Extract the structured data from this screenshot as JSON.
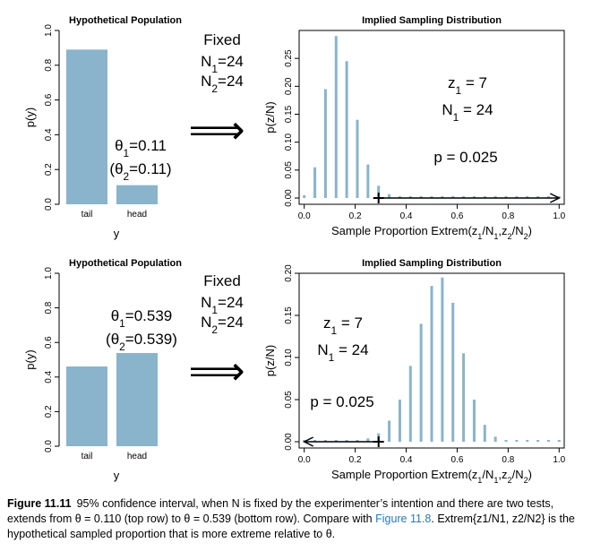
{
  "colors": {
    "bar": "#89b4cb",
    "axis": "#000000",
    "link": "#2a7ab8"
  },
  "chart_data": [
    {
      "type": "bar",
      "title": "Hypothetical Population",
      "xlabel": "y",
      "ylabel": "p(y)",
      "categories": [
        "tail",
        "head"
      ],
      "values": [
        0.89,
        0.11
      ],
      "ylim": [
        0,
        1
      ],
      "yticks": [
        "0.0",
        "0.2",
        "0.4",
        "0.6",
        "0.8",
        "1.0"
      ],
      "theta_label": "θ1=0.11",
      "theta2_label": "(θ2=0.11)"
    },
    {
      "type": "bar",
      "title": "Implied Sampling Distribution",
      "xlabel": "Sample Proportion Extrem(z1/N1,z2/N2)",
      "ylabel": "p(z/N)",
      "ylim": [
        0,
        0.3
      ],
      "xlim": [
        -0.02,
        1.02
      ],
      "xticks": [
        "0.0",
        "0.2",
        "0.4",
        "0.6",
        "0.8",
        "1.0"
      ],
      "yticks": [
        "0.00",
        "0.05",
        "0.10",
        "0.15",
        "0.20",
        "0.25"
      ],
      "x": [
        0.0,
        0.0417,
        0.0833,
        0.125,
        0.1667,
        0.2083,
        0.25,
        0.2917,
        0.3333,
        0.375,
        0.4167,
        0.4583,
        0.5,
        0.5417,
        0.5833,
        0.625,
        0.6667,
        0.7083,
        0.75,
        0.7917,
        0.8333,
        0.875,
        0.9167,
        0.9583,
        1.0
      ],
      "values": [
        0.005,
        0.055,
        0.195,
        0.29,
        0.245,
        0.14,
        0.06,
        0.022,
        0.007,
        0.002,
        0.001,
        0.0005,
        0.0003,
        0.0002,
        0.0002,
        0.0002,
        0.0002,
        0.0002,
        0.0002,
        0.0002,
        0.0002,
        0.0002,
        0.0002,
        0.0002,
        0.0002
      ],
      "marker_x": 0.2917,
      "arrow_direction": "right",
      "fixed_label": "Fixed",
      "n1_label": "N1=24",
      "n2_label": "N2=24",
      "z1_label": "z1 = 7",
      "N1_label": "N1 = 24",
      "p_label": "p = 0.025"
    },
    {
      "type": "bar",
      "title": "Hypothetical Population",
      "xlabel": "y",
      "ylabel": "p(y)",
      "categories": [
        "tail",
        "head"
      ],
      "values": [
        0.461,
        0.539
      ],
      "ylim": [
        0,
        1
      ],
      "yticks": [
        "0.0",
        "0.2",
        "0.4",
        "0.6",
        "0.8",
        "1.0"
      ],
      "theta_label": "θ1=0.539",
      "theta2_label": "(θ2=0.539)"
    },
    {
      "type": "bar",
      "title": "Implied Sampling Distribution",
      "xlabel": "Sample Proportion Extrem(z1/N1,z2/N2)",
      "ylabel": "p(z/N)",
      "ylim": [
        0,
        0.2
      ],
      "xlim": [
        -0.02,
        1.02
      ],
      "xticks": [
        "0.0",
        "0.2",
        "0.4",
        "0.6",
        "0.8",
        "1.0"
      ],
      "yticks": [
        "0.00",
        "0.05",
        "0.10",
        "0.15",
        "0.20"
      ],
      "x": [
        0.0,
        0.0417,
        0.0833,
        0.125,
        0.1667,
        0.2083,
        0.25,
        0.2917,
        0.3333,
        0.375,
        0.4167,
        0.4583,
        0.5,
        0.5417,
        0.5833,
        0.625,
        0.6667,
        0.7083,
        0.75,
        0.7917,
        0.8333,
        0.875,
        0.9167,
        0.9583,
        1.0
      ],
      "values": [
        0.0002,
        0.0002,
        0.0003,
        0.0005,
        0.001,
        0.002,
        0.004,
        0.01,
        0.025,
        0.05,
        0.09,
        0.14,
        0.185,
        0.195,
        0.165,
        0.105,
        0.05,
        0.02,
        0.006,
        0.002,
        0.0008,
        0.0003,
        0.0002,
        0.0002,
        0.0002
      ],
      "marker_x": 0.2917,
      "arrow_direction": "left",
      "fixed_label": "Fixed",
      "n1_label": "N1=24",
      "n2_label": "N2=24",
      "z1_label": "z1 = 7",
      "N1_label": "N1 = 24",
      "p_label": "p = 0.025"
    }
  ],
  "caption": {
    "figure": "Figure 11.11",
    "text_part1": "95% confidence interval, when N is fixed by the experimenter’s intention and there are two tests, extends from θ = 0.110 (top row) to θ = 0.539 (bottom row). Compare with ",
    "link": "Figure 11.8",
    "text_part2": ". Extrem{z1/N1, z2/N2} is the hypothetical sampled proportion that is more extreme relative to θ."
  }
}
